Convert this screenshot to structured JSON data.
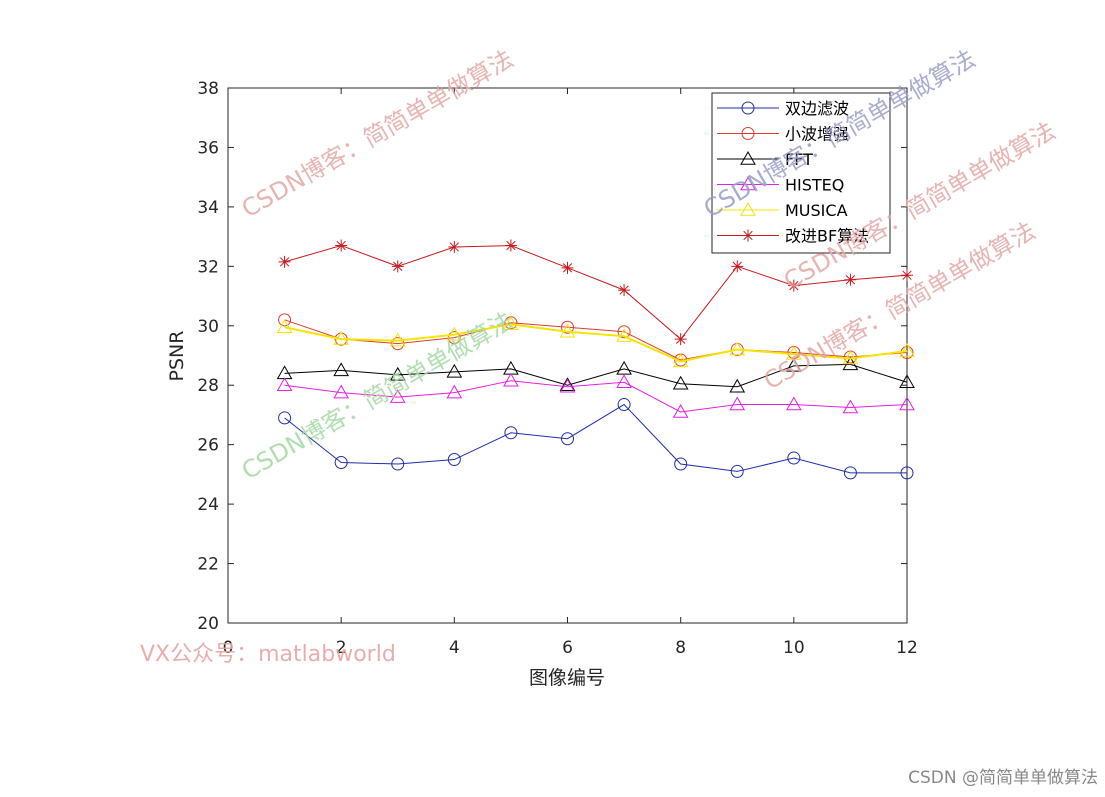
{
  "chart_data": {
    "type": "line",
    "title": "",
    "xlabel": "图像编号",
    "ylabel": "PSNR",
    "xlim": [
      0,
      12
    ],
    "ylim": [
      20,
      38
    ],
    "xticks": [
      0,
      2,
      4,
      6,
      8,
      10,
      12
    ],
    "yticks": [
      20,
      22,
      24,
      26,
      28,
      30,
      32,
      34,
      36,
      38
    ],
    "grid": false,
    "legend_position": "top-right",
    "x": [
      1,
      2,
      3,
      4,
      5,
      6,
      7,
      8,
      9,
      10,
      11,
      12
    ],
    "series": [
      {
        "name": "双边滤波",
        "color": "#1f2fa8",
        "marker": "circle",
        "values": [
          26.9,
          25.4,
          25.35,
          25.5,
          26.4,
          26.2,
          27.35,
          25.35,
          25.1,
          25.55,
          25.05,
          25.05
        ]
      },
      {
        "name": "小波增强",
        "color": "#e23b2e",
        "marker": "circle",
        "values": [
          30.2,
          29.55,
          29.4,
          29.6,
          30.1,
          29.95,
          29.8,
          28.85,
          29.2,
          29.1,
          28.95,
          29.1
        ]
      },
      {
        "name": "FFT",
        "color": "#000000",
        "marker": "triangle",
        "values": [
          28.4,
          28.5,
          28.35,
          28.45,
          28.55,
          28.0,
          28.55,
          28.05,
          27.95,
          28.65,
          28.7,
          28.1
        ]
      },
      {
        "name": "HISTEQ",
        "color": "#e61ee6",
        "marker": "triangle",
        "values": [
          28.0,
          27.75,
          27.6,
          27.75,
          28.15,
          27.95,
          28.1,
          27.1,
          27.35,
          27.35,
          27.25,
          27.35
        ]
      },
      {
        "name": "MUSICA",
        "color": "#f5e400",
        "marker": "triangle",
        "values": [
          29.95,
          29.55,
          29.5,
          29.7,
          30.05,
          29.8,
          29.65,
          28.8,
          29.2,
          29.05,
          28.9,
          29.15
        ]
      },
      {
        "name": "改进BF算法",
        "color": "#c8191e",
        "marker": "star",
        "values": [
          32.15,
          32.7,
          32.0,
          32.65,
          32.7,
          31.95,
          31.2,
          29.55,
          32.0,
          31.35,
          31.55,
          31.7
        ]
      }
    ]
  },
  "watermarks": [
    "CSDN博客：简简单单做算法",
    "CSDN博客：简简单单做算法",
    "CSDN博客：简简单单做算法",
    "CSDN博客：简简单单做算法",
    "CSDN博客：简简单单做算法",
    "VX公众号：matlabworld"
  ],
  "footer_credit": "CSDN @简简单单做算法"
}
